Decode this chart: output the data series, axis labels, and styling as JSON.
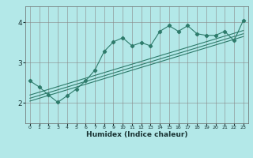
{
  "xlabel": "Humidex (Indice chaleur)",
  "ylabel": "",
  "bg_color": "#b3e8e8",
  "grid_color": "#888888",
  "line_color": "#2e7b6b",
  "xlim": [
    -0.5,
    23.5
  ],
  "ylim": [
    1.5,
    4.4
  ],
  "yticks": [
    2,
    3,
    4
  ],
  "xticks": [
    0,
    1,
    2,
    3,
    4,
    5,
    6,
    7,
    8,
    9,
    10,
    11,
    12,
    13,
    14,
    15,
    16,
    17,
    18,
    19,
    20,
    21,
    22,
    23
  ],
  "main_line_x": [
    0,
    1,
    2,
    3,
    4,
    5,
    6,
    7,
    8,
    9,
    10,
    11,
    12,
    13,
    14,
    15,
    16,
    17,
    18,
    19,
    20,
    21,
    22,
    23
  ],
  "main_line_y": [
    2.55,
    2.4,
    2.2,
    2.02,
    2.18,
    2.35,
    2.55,
    2.82,
    3.28,
    3.52,
    3.62,
    3.42,
    3.5,
    3.42,
    3.78,
    3.92,
    3.78,
    3.92,
    3.72,
    3.68,
    3.68,
    3.78,
    3.55,
    4.05
  ],
  "line2_x": [
    0,
    23
  ],
  "line2_y": [
    2.05,
    3.65
  ],
  "line3_x": [
    0,
    23
  ],
  "line3_y": [
    2.12,
    3.72
  ],
  "line4_x": [
    0,
    23
  ],
  "line4_y": [
    2.2,
    3.8
  ]
}
